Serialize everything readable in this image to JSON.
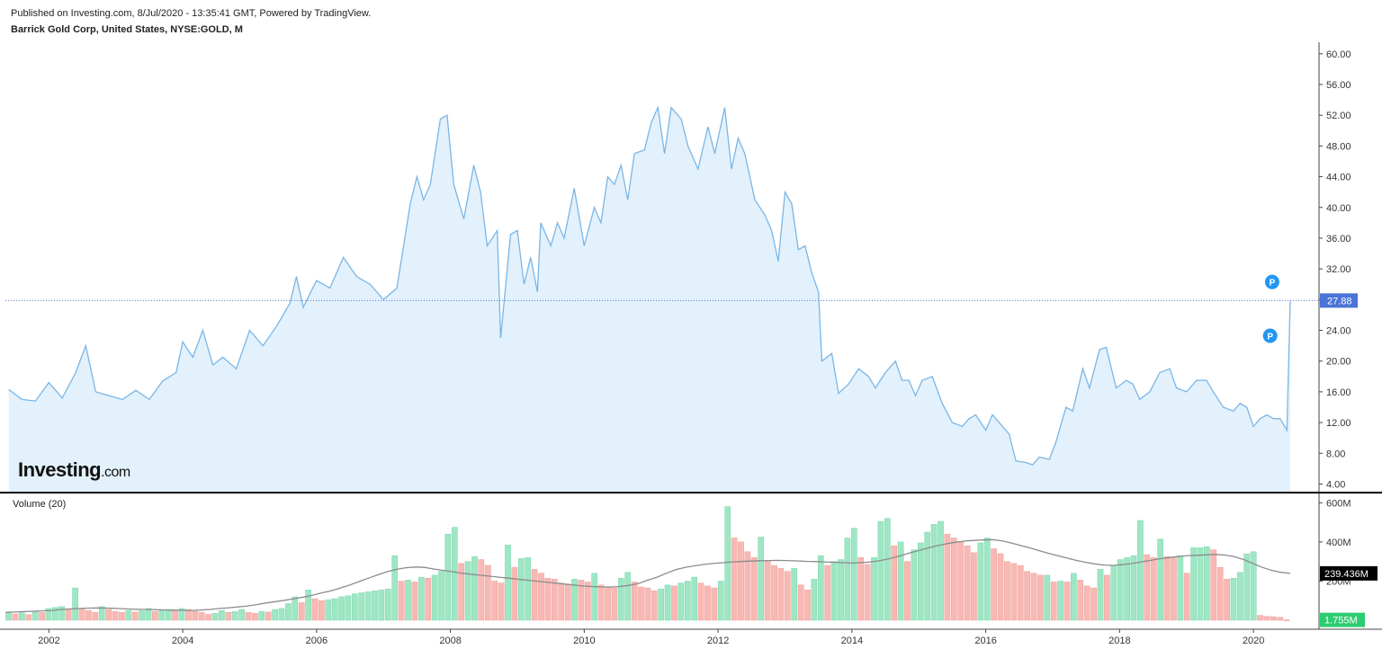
{
  "header": {
    "published": "Published on Investing.com, 8/Jul/2020 - 13:35:41 GMT, Powered by TradingView.",
    "symbol": "Barrick Gold Corp, United States, NYSE:GOLD, M"
  },
  "logo": {
    "main": "Investing",
    "suffix": ".com"
  },
  "colors": {
    "price_line": "#7bb6e6",
    "price_fill": "#e2f1fb",
    "last_price_tag": "#4a74d6",
    "vol_up": "#9ee6c4",
    "vol_down": "#f8b9b4",
    "vol_ma": "#8c8c8c",
    "last_vol_tag": "#2ecc71",
    "vol_ma_tag": "#000000",
    "marker": "#2196f3"
  },
  "chart_data": [
    {
      "type": "area",
      "title": "",
      "x_range": [
        2001.35,
        2020.55
      ],
      "ylim": [
        3.0,
        61.5
      ],
      "y_ticks": [
        "4.00",
        "8.00",
        "12.00",
        "16.00",
        "20.00",
        "24.00",
        "28.00",
        "32.00",
        "36.00",
        "40.00",
        "44.00",
        "48.00",
        "52.00",
        "56.00",
        "60.00"
      ],
      "x_ticks": [
        "2002",
        "2004",
        "2006",
        "2008",
        "2010",
        "2012",
        "2014",
        "2016",
        "2018",
        "2020"
      ],
      "last_price": {
        "value": 27.88,
        "label": "27.88"
      },
      "markers": [
        {
          "label": "P",
          "x": 2020.25,
          "y": 23.3
        },
        {
          "label": "P",
          "x": 2020.28,
          "y": 30.3
        }
      ],
      "series": [
        {
          "points": [
            [
              2001.4,
              16.3
            ],
            [
              2001.6,
              15.0
            ],
            [
              2001.8,
              14.8
            ],
            [
              2002.0,
              17.2
            ],
            [
              2002.2,
              15.2
            ],
            [
              2002.4,
              18.5
            ],
            [
              2002.55,
              22.0
            ],
            [
              2002.7,
              16.0
            ],
            [
              2002.9,
              15.5
            ],
            [
              2003.1,
              15.0
            ],
            [
              2003.3,
              16.2
            ],
            [
              2003.5,
              15.0
            ],
            [
              2003.7,
              17.4
            ],
            [
              2003.9,
              18.5
            ],
            [
              2004.0,
              22.5
            ],
            [
              2004.15,
              20.5
            ],
            [
              2004.3,
              24.0
            ],
            [
              2004.45,
              19.5
            ],
            [
              2004.6,
              20.5
            ],
            [
              2004.8,
              19.0
            ],
            [
              2005.0,
              24.0
            ],
            [
              2005.2,
              22.0
            ],
            [
              2005.4,
              24.5
            ],
            [
              2005.6,
              27.5
            ],
            [
              2005.7,
              31.0
            ],
            [
              2005.8,
              27.0
            ],
            [
              2006.0,
              30.5
            ],
            [
              2006.2,
              29.5
            ],
            [
              2006.4,
              33.5
            ],
            [
              2006.6,
              31.0
            ],
            [
              2006.8,
              30.0
            ],
            [
              2007.0,
              28.0
            ],
            [
              2007.2,
              29.5
            ],
            [
              2007.4,
              40.5
            ],
            [
              2007.5,
              44.0
            ],
            [
              2007.6,
              41.0
            ],
            [
              2007.7,
              43.0
            ],
            [
              2007.85,
              51.5
            ],
            [
              2007.95,
              52.0
            ],
            [
              2008.05,
              43.0
            ],
            [
              2008.2,
              38.5
            ],
            [
              2008.35,
              45.5
            ],
            [
              2008.45,
              42.0
            ],
            [
              2008.55,
              35.0
            ],
            [
              2008.7,
              37.0
            ],
            [
              2008.75,
              23.0
            ],
            [
              2008.9,
              36.5
            ],
            [
              2009.0,
              37.0
            ],
            [
              2009.1,
              30.0
            ],
            [
              2009.2,
              33.5
            ],
            [
              2009.3,
              29.0
            ],
            [
              2009.35,
              38.0
            ],
            [
              2009.5,
              35.0
            ],
            [
              2009.6,
              38.0
            ],
            [
              2009.7,
              36.0
            ],
            [
              2009.85,
              42.5
            ],
            [
              2010.0,
              35.0
            ],
            [
              2010.15,
              40.0
            ],
            [
              2010.25,
              38.0
            ],
            [
              2010.35,
              44.0
            ],
            [
              2010.45,
              43.0
            ],
            [
              2010.55,
              45.5
            ],
            [
              2010.65,
              41.0
            ],
            [
              2010.75,
              47.0
            ],
            [
              2010.9,
              47.5
            ],
            [
              2011.0,
              51.0
            ],
            [
              2011.1,
              53.0
            ],
            [
              2011.2,
              47.0
            ],
            [
              2011.3,
              53.0
            ],
            [
              2011.45,
              51.5
            ],
            [
              2011.55,
              48.0
            ],
            [
              2011.7,
              45.0
            ],
            [
              2011.85,
              50.5
            ],
            [
              2011.95,
              47.0
            ],
            [
              2012.1,
              53.0
            ],
            [
              2012.2,
              45.0
            ],
            [
              2012.3,
              49.0
            ],
            [
              2012.4,
              47.0
            ],
            [
              2012.55,
              41.0
            ],
            [
              2012.7,
              39.0
            ],
            [
              2012.8,
              37.0
            ],
            [
              2012.9,
              33.0
            ],
            [
              2013.0,
              42.0
            ],
            [
              2013.1,
              40.5
            ],
            [
              2013.2,
              34.5
            ],
            [
              2013.3,
              35.0
            ],
            [
              2013.4,
              31.5
            ],
            [
              2013.5,
              29.0
            ],
            [
              2013.55,
              20.0
            ],
            [
              2013.7,
              21.0
            ],
            [
              2013.8,
              15.8
            ],
            [
              2013.95,
              17.0
            ],
            [
              2014.1,
              19.0
            ],
            [
              2014.25,
              18.0
            ],
            [
              2014.35,
              16.5
            ],
            [
              2014.5,
              18.5
            ],
            [
              2014.65,
              20.0
            ],
            [
              2014.75,
              17.5
            ],
            [
              2014.85,
              17.5
            ],
            [
              2014.95,
              15.5
            ],
            [
              2015.05,
              17.5
            ],
            [
              2015.2,
              18.0
            ],
            [
              2015.35,
              14.5
            ],
            [
              2015.5,
              12.0
            ],
            [
              2015.65,
              11.5
            ],
            [
              2015.75,
              12.5
            ],
            [
              2015.85,
              13.0
            ],
            [
              2016.0,
              11.0
            ],
            [
              2016.1,
              13.0
            ],
            [
              2016.2,
              12.0
            ],
            [
              2016.35,
              10.5
            ],
            [
              2016.45,
              7.0
            ],
            [
              2016.6,
              6.8
            ],
            [
              2016.7,
              6.5
            ],
            [
              2016.8,
              7.5
            ],
            [
              2016.95,
              7.2
            ],
            [
              2017.05,
              9.5
            ],
            [
              2017.2,
              14.0
            ],
            [
              2017.3,
              13.5
            ],
            [
              2017.45,
              19.0
            ],
            [
              2017.55,
              16.5
            ],
            [
              2017.7,
              21.5
            ],
            [
              2017.8,
              21.8
            ],
            [
              2017.95,
              16.5
            ],
            [
              2018.1,
              17.5
            ],
            [
              2018.2,
              17.0
            ],
            [
              2018.3,
              15.0
            ],
            [
              2018.45,
              16.0
            ],
            [
              2018.6,
              18.5
            ],
            [
              2018.75,
              19.0
            ],
            [
              2018.85,
              16.5
            ],
            [
              2019.0,
              16.0
            ],
            [
              2019.15,
              17.5
            ],
            [
              2019.3,
              17.5
            ],
            [
              2019.4,
              16.0
            ],
            [
              2019.55,
              14.0
            ],
            [
              2019.7,
              13.5
            ],
            [
              2019.8,
              14.5
            ],
            [
              2019.9,
              14.0
            ],
            [
              2020.0,
              11.5
            ],
            [
              2020.1,
              12.5
            ],
            [
              2020.2,
              13.0
            ],
            [
              2020.3,
              12.5
            ],
            [
              2020.4,
              12.5
            ],
            [
              2020.5,
              11.0
            ],
            [
              2020.55,
              27.88
            ]
          ]
        }
      ]
    },
    {
      "type": "bar",
      "title": "Volume (20)",
      "x_range": [
        2001.35,
        2020.55
      ],
      "ylim": [
        0,
        620
      ],
      "y_ticks": [
        "200M",
        "400M",
        "600M"
      ],
      "last_volume": {
        "value": 1.755,
        "label": "1.755M"
      },
      "ma": {
        "value": 239.436,
        "label": "239.436M"
      },
      "bars_summary": "monthly volume bars, green for up months and red for down months",
      "values": [
        40,
        32,
        38,
        28,
        45,
        40,
        60,
        65,
        70,
        55,
        165,
        60,
        50,
        40,
        70,
        55,
        45,
        40,
        50,
        42,
        48,
        60,
        45,
        50,
        55,
        48,
        60,
        55,
        45,
        40,
        30,
        35,
        50,
        40,
        45,
        55,
        40,
        35,
        45,
        42,
        55,
        60,
        85,
        120,
        90,
        155,
        110,
        100,
        105,
        110,
        120,
        125,
        135,
        140,
        145,
        150,
        155,
        160,
        330,
        200,
        205,
        195,
        220,
        215,
        230,
        250,
        440,
        475,
        290,
        300,
        325,
        310,
        280,
        200,
        190,
        385,
        270,
        315,
        320,
        260,
        240,
        215,
        210,
        190,
        185,
        210,
        205,
        195,
        240,
        180,
        170,
        165,
        215,
        245,
        195,
        170,
        165,
        150,
        160,
        180,
        175,
        190,
        200,
        220,
        190,
        175,
        165,
        200,
        580,
        420,
        400,
        350,
        320,
        425,
        300,
        280,
        265,
        250,
        265,
        180,
        155,
        210,
        330,
        280,
        300,
        310,
        420,
        470,
        320,
        285,
        320,
        505,
        520,
        380,
        400,
        300,
        360,
        395,
        450,
        490,
        505,
        440,
        420,
        400,
        380,
        345,
        395,
        420,
        365,
        340,
        300,
        290,
        280,
        250,
        240,
        230,
        230,
        195,
        200,
        195,
        240,
        205,
        175,
        165,
        260,
        230,
        280,
        310,
        320,
        330,
        510,
        335,
        320,
        415,
        325,
        320,
        330,
        240,
        370,
        370,
        375,
        360,
        270,
        210,
        215,
        245,
        340,
        350,
        25,
        20,
        18,
        15,
        1.755
      ],
      "ma_values": [
        40,
        42,
        44,
        46,
        48,
        50,
        55,
        58,
        60,
        62,
        63,
        62,
        60,
        58,
        56,
        55,
        54,
        53,
        52,
        51,
        50,
        52,
        55,
        60,
        64,
        68,
        73,
        80,
        88,
        95,
        102,
        110,
        118,
        128,
        140,
        150,
        165,
        180,
        198,
        215,
        232,
        248,
        260,
        268,
        272,
        270,
        262,
        255,
        248,
        240,
        235,
        230,
        225,
        220,
        215,
        210,
        205,
        200,
        195,
        190,
        185,
        180,
        175,
        172,
        170,
        170,
        172,
        178,
        188,
        205,
        220,
        240,
        258,
        270,
        278,
        285,
        290,
        294,
        297,
        300,
        302,
        304,
        305,
        306,
        305,
        303,
        301,
        300,
        298,
        296,
        294,
        292,
        295,
        298,
        305,
        315,
        328,
        342,
        355,
        368,
        380,
        390,
        398,
        404,
        408,
        410,
        412,
        406,
        395,
        382,
        370,
        356,
        342,
        330,
        318,
        306,
        296,
        288,
        282,
        280,
        284,
        290,
        298,
        306,
        314,
        320,
        326,
        330,
        332,
        334,
        336,
        333,
        325,
        310,
        290,
        270,
        255,
        245,
        239.436
      ]
    }
  ]
}
